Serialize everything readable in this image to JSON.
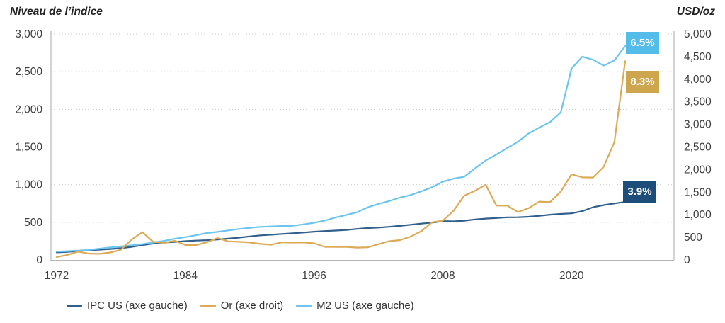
{
  "chart_data": {
    "type": "line",
    "left_axis_title": "Niveau de l’indice",
    "right_axis_title": "USD/oz",
    "years": [
      1972,
      1973,
      1974,
      1975,
      1976,
      1977,
      1978,
      1979,
      1980,
      1981,
      1982,
      1983,
      1984,
      1985,
      1986,
      1987,
      1988,
      1989,
      1990,
      1991,
      1992,
      1993,
      1994,
      1995,
      1996,
      1997,
      1998,
      1999,
      2000,
      2001,
      2002,
      2003,
      2004,
      2005,
      2006,
      2007,
      2008,
      2009,
      2010,
      2011,
      2012,
      2013,
      2014,
      2015,
      2016,
      2017,
      2018,
      2019,
      2020,
      2021,
      2022,
      2023,
      2024,
      2025
    ],
    "x_tick_years": [
      1972,
      1984,
      1996,
      2008,
      2020
    ],
    "x_tick_labels": [
      "1972",
      "1984",
      "1996",
      "2008",
      "2020"
    ],
    "left_axis": {
      "max": 3000,
      "step": 500,
      "tick_labels": [
        "0",
        "500",
        "1,000",
        "1,500",
        "2,000",
        "2,500",
        "3,000"
      ]
    },
    "right_axis": {
      "max": 5000,
      "step": 500,
      "tick_labels": [
        "0",
        "500",
        "1,000",
        "1,500",
        "2,000",
        "2,500",
        "3,000",
        "3,500",
        "4,000",
        "4,500",
        "5,000"
      ]
    },
    "series": [
      {
        "id": "ipc-us",
        "legend_label": "IPC US (axe gauche)",
        "axis": "left",
        "color": "#2f5f8a",
        "end_label": "3.9%",
        "end_label_bg": "#1d4e7a",
        "values": [
          100,
          106,
          118,
          129,
          136,
          145,
          156,
          174,
          197,
          217,
          231,
          238,
          249,
          257,
          262,
          272,
          283,
          296,
          312,
          326,
          335,
          345,
          354,
          364,
          375,
          384,
          390,
          398,
          412,
          423,
          430,
          440,
          452,
          467,
          482,
          496,
          515,
          513,
          521,
          538,
          549,
          557,
          566,
          567,
          574,
          586,
          601,
          611,
          619,
          648,
          700,
          729,
          750,
          772
        ]
      },
      {
        "id": "or",
        "legend_label": "Or (axe droit)",
        "axis": "right",
        "color": "#dcaa55",
        "end_label": "8.3%",
        "end_label_bg": "#cda64e",
        "values": [
          64,
          112,
          184,
          140,
          135,
          165,
          226,
          455,
          615,
          400,
          376,
          424,
          330,
          327,
          390,
          484,
          410,
          401,
          385,
          355,
          335,
          390,
          384,
          387,
          369,
          290,
          288,
          290,
          273,
          279,
          348,
          416,
          438,
          517,
          636,
          834,
          870,
          1088,
          1421,
          1531,
          1664,
          1202,
          1206,
          1060,
          1146,
          1291,
          1279,
          1515,
          1895,
          1829,
          1824,
          2063,
          2610,
          4400
        ]
      },
      {
        "id": "m2-us",
        "legend_label": "M2 US (axe gauche)",
        "axis": "left",
        "color": "#6cc4f0",
        "end_label": "6.5%",
        "end_label_bg": "#54bce9",
        "values": [
          110,
          117,
          124,
          134,
          150,
          166,
          180,
          194,
          210,
          231,
          252,
          281,
          303,
          328,
          357,
          372,
          392,
          411,
          426,
          439,
          445,
          451,
          453,
          472,
          494,
          523,
          563,
          597,
          633,
          699,
          744,
          782,
          828,
          862,
          911,
          966,
          1040,
          1080,
          1105,
          1215,
          1320,
          1400,
          1485,
          1570,
          1680,
          1760,
          1830,
          1960,
          2540,
          2700,
          2660,
          2580,
          2650,
          2840
        ]
      }
    ],
    "layout": {
      "grid": "dotted horizontal",
      "legend_position": "bottom-left"
    }
  }
}
